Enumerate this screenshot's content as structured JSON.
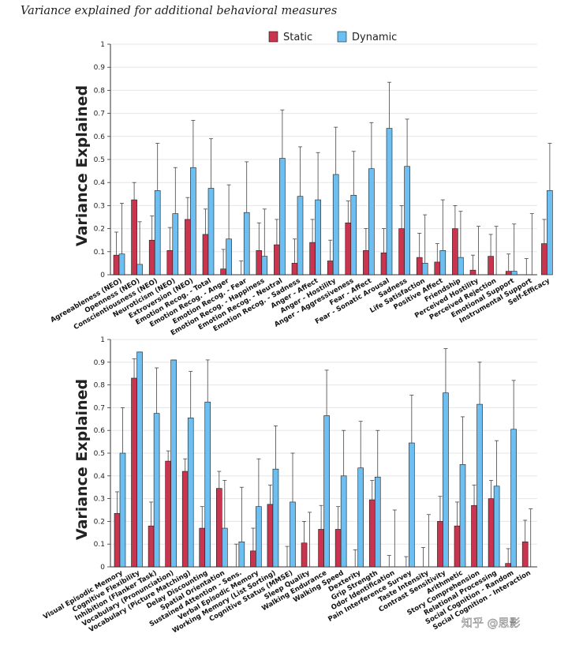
{
  "figure_title": "Variance explained for additional behavioral measures",
  "watermark": "知乎 @思影",
  "colors": {
    "static": "#c9344f",
    "dynamic": "#6cbff0",
    "stroke": "#1b1b1b"
  },
  "chart_data": [
    {
      "type": "bar",
      "ylabel": "Variance Explained",
      "ylim": [
        0,
        1
      ],
      "yticks": [
        "0",
        "0.1",
        "0.2",
        "0.3",
        "0.4",
        "0.5",
        "0.6",
        "0.7",
        "0.8",
        "0.9",
        "1"
      ],
      "legend": {
        "position": "top-center",
        "entries": [
          "Static",
          "Dynamic"
        ]
      },
      "categories": [
        "Agreeableness (NEO)",
        "Openness (NEO)",
        "Conscientiousness (NEO)",
        "Neuroticism (NEO)",
        "Extroversion (NEO)",
        "Emotion Recog. - Total",
        "Emotion Recog. - Anger",
        "Emotion Recog. - Fear",
        "Emotion Recog. - Happiness",
        "Emotion Recog. - Neutral",
        "Emotion Recog. - Sadness",
        "Anger - Affect",
        "Anger - Hostility",
        "Anger - Aggressiveness",
        "Fear - Affect",
        "Fear - Sonatic Arousal",
        "Sadness",
        "Life Satisfaction",
        "Positive Affect",
        "Friendship",
        "Perceived Hostility",
        "Perceived Rejection",
        "Emotional Support",
        "Instrumental Support",
        "Self-Efficacy"
      ],
      "series": [
        {
          "name": "Static",
          "values": [
            0.085,
            0.325,
            0.15,
            0.105,
            0.24,
            0.175,
            0.025,
            0.0,
            0.105,
            0.13,
            0.05,
            0.14,
            0.06,
            0.225,
            0.105,
            0.095,
            0.2,
            0.075,
            0.055,
            0.2,
            0.02,
            0.08,
            0.015,
            0.0,
            0.135
          ],
          "err_upper": [
            0.185,
            0.4,
            0.255,
            0.205,
            0.335,
            0.285,
            0.11,
            0.06,
            0.225,
            0.24,
            0.155,
            0.24,
            0.15,
            0.32,
            0.2,
            0.2,
            0.3,
            0.18,
            0.135,
            0.3,
            0.085,
            0.175,
            0.09,
            0.07,
            0.24
          ]
        },
        {
          "name": "Dynamic",
          "values": [
            0.09,
            0.045,
            0.365,
            0.265,
            0.465,
            0.375,
            0.155,
            0.27,
            0.08,
            0.505,
            0.34,
            0.325,
            0.435,
            0.345,
            0.46,
            0.635,
            0.47,
            0.05,
            0.105,
            0.075,
            0.0,
            0.0,
            0.015,
            0.0,
            0.365
          ],
          "err_upper": [
            0.31,
            0.23,
            0.57,
            0.465,
            0.67,
            0.59,
            0.39,
            0.49,
            0.285,
            0.715,
            0.555,
            0.53,
            0.64,
            0.535,
            0.66,
            0.835,
            0.675,
            0.26,
            0.325,
            0.275,
            0.21,
            0.21,
            0.22,
            0.265,
            0.57
          ]
        }
      ]
    },
    {
      "type": "bar",
      "ylabel": "Variance Explained",
      "ylim": [
        0,
        1
      ],
      "yticks": [
        "0",
        "0.1",
        "0.2",
        "0.3",
        "0.4",
        "0.5",
        "0.6",
        "0.7",
        "0.8",
        "0.9",
        "1"
      ],
      "categories": [
        "Visual Episodic Memory",
        "Cognitive Flexibility",
        "Inhibition (Flanker Task)",
        "Vocabulary (Pronunciation)",
        "Vocabulary (Picture Matching)",
        "Delay Discounting",
        "Spatial Orientation",
        "Sustained Attention - Sens.",
        "Verbal Episodic Memory",
        "Working Memory (List Sorting)",
        "Cognitive Status (MMSE)",
        "Sleep Quality",
        "Walking Endurance",
        "Walking Speed",
        "Dexterity",
        "Grip Strength",
        "Odor Identification",
        "Pain Interference Survey",
        "Taste Intensity",
        "Contrast Sensitivity",
        "Arithmetic",
        "Story Comprehension",
        "Relational Processing",
        "Social Cognition - Random",
        "Social Cognition - Interaction"
      ],
      "series": [
        {
          "name": "Static",
          "values": [
            0.235,
            0.83,
            0.18,
            0.465,
            0.42,
            0.17,
            0.345,
            0.0,
            0.07,
            0.275,
            0.0,
            0.105,
            0.165,
            0.165,
            0.0,
            0.295,
            0.0,
            0.0,
            0.0,
            0.2,
            0.18,
            0.27,
            0.3,
            0.015,
            0.11
          ],
          "err_upper": [
            0.33,
            0.915,
            0.285,
            0.51,
            0.475,
            0.265,
            0.42,
            0.1,
            0.17,
            0.36,
            0.09,
            0.2,
            0.27,
            0.265,
            0.075,
            0.38,
            0.05,
            0.045,
            0.085,
            0.31,
            0.285,
            0.36,
            0.38,
            0.08,
            0.205
          ]
        },
        {
          "name": "Dynamic",
          "values": [
            0.5,
            0.945,
            0.675,
            0.91,
            0.655,
            0.725,
            0.17,
            0.11,
            0.265,
            0.43,
            0.285,
            0.0,
            0.665,
            0.4,
            0.435,
            0.395,
            0.0,
            0.545,
            0.0,
            0.765,
            0.45,
            0.715,
            0.355,
            0.605,
            0.0
          ],
          "err_upper": [
            0.7,
            0.945,
            0.875,
            0.91,
            0.86,
            0.91,
            0.38,
            0.35,
            0.475,
            0.62,
            0.5,
            0.24,
            0.865,
            0.6,
            0.64,
            0.6,
            0.25,
            0.755,
            0.23,
            0.96,
            0.66,
            0.9,
            0.555,
            0.82,
            0.255
          ]
        }
      ]
    }
  ]
}
